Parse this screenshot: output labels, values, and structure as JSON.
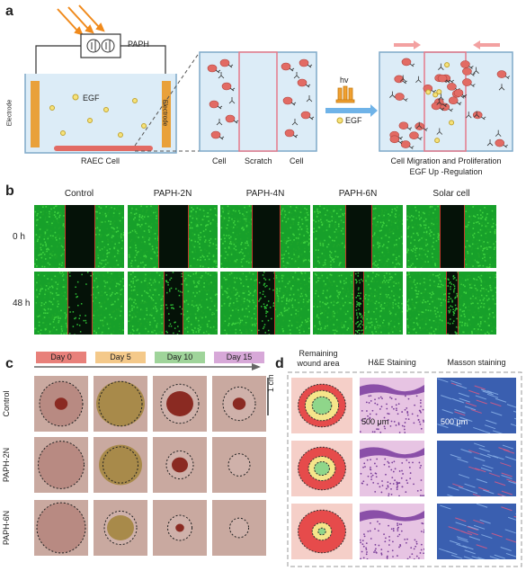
{
  "panel_a": {
    "label": "a",
    "paph": "PAPH",
    "electrode_left": "Electrode",
    "electrode_right": "Electrode",
    "egf": "EGF",
    "raec": "RAEC Cell",
    "cell_left": "Cell",
    "scratch": "Scratch",
    "cell_right": "Cell",
    "hv": "hv",
    "egf_legend": "EGF",
    "result_line1": "Cell Migration and Proliferation",
    "result_line2": "EGF Up -Regulation"
  },
  "panel_b": {
    "label": "b",
    "columns": [
      "Control",
      "PAPH-2N",
      "PAPH-4N",
      "PAPH-6N",
      "Solar cell"
    ],
    "rows": [
      "0 h",
      "48 h"
    ],
    "gap_fraction_0h": [
      0.32,
      0.32,
      0.3,
      0.28,
      0.26
    ],
    "gap_fraction_48h": [
      0.26,
      0.2,
      0.18,
      0.1,
      0.12
    ]
  },
  "panel_c": {
    "label": "c",
    "days": [
      "Day 0",
      "Day 5",
      "Day 10",
      "Day 15"
    ],
    "day_colors": [
      "#e8807a",
      "#f4c98a",
      "#9fd49a",
      "#d7a8d8"
    ],
    "rows": [
      "Control",
      "PAPH-2N",
      "PAPH-6N"
    ],
    "scale": "1 cm"
  },
  "panel_d": {
    "label": "d",
    "col_remaining": "Remaining wound area",
    "col_he": "H&E Staining",
    "col_masson": "Masson staining",
    "scale_he": "500 μm",
    "scale_masson": "500 μm"
  }
}
